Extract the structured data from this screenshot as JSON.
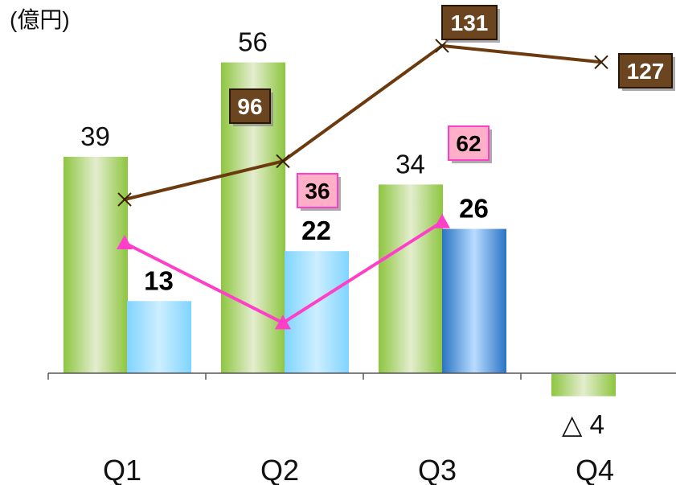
{
  "chart_data": {
    "type": "bar",
    "unit_label": "(億円)",
    "categories": [
      "Q1",
      "Q2",
      "Q3",
      "Q4"
    ],
    "bar_series": [
      {
        "values": [
          39,
          56,
          34,
          -4
        ],
        "labels": [
          "39",
          "56",
          "34",
          "△ 4"
        ],
        "color": "#8dc63f"
      },
      {
        "values": [
          13,
          22,
          26,
          null
        ],
        "labels": [
          "13",
          "22",
          "26",
          ""
        ],
        "color": "#7fd4ff",
        "highlight_color": "#2a74c4"
      }
    ],
    "line_series": [
      {
        "values": [
          null,
          96,
          131,
          127
        ],
        "labels": [
          "",
          "96",
          "131",
          "127"
        ],
        "marker": "x",
        "color": "#6b3a0e",
        "badge_color": "#6b4420"
      },
      {
        "values": [
          null,
          36,
          62,
          null
        ],
        "labels": [
          "",
          "36",
          "62",
          ""
        ],
        "marker": "triangle",
        "color": "#ff3fc8",
        "badge_color": "#ffb0c8"
      }
    ]
  }
}
